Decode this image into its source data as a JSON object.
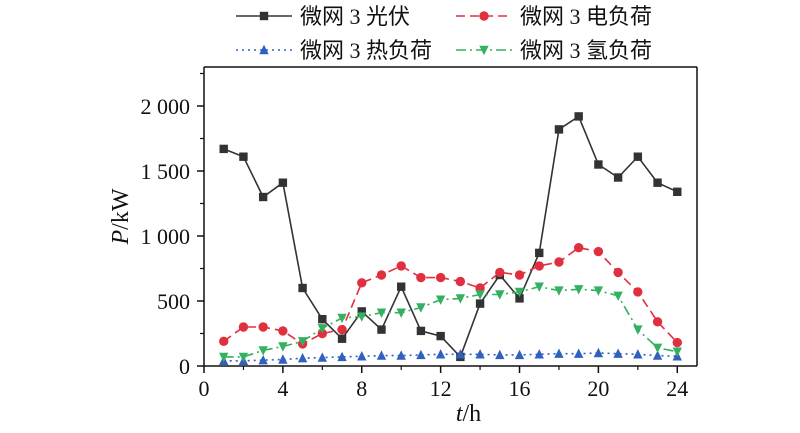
{
  "chart_data": {
    "type": "line",
    "xlabel_italic": "t",
    "xlabel_unit": "/h",
    "ylabel_italic": "P",
    "ylabel_unit": "/kW",
    "xlim": [
      0,
      25
    ],
    "ylim": [
      0,
      2300
    ],
    "x_ticks": [
      0,
      4,
      8,
      12,
      16,
      20,
      24
    ],
    "x_tick_labels": [
      "0",
      "4",
      "8",
      "12",
      "16",
      "20",
      "24"
    ],
    "y_ticks": [
      0,
      500,
      1000,
      1500,
      2000
    ],
    "y_tick_labels": [
      "0",
      "500",
      "1 000",
      "1 500",
      "2 000"
    ],
    "grid": false,
    "legend_position": "top",
    "x": [
      1,
      2,
      3,
      4,
      5,
      6,
      7,
      8,
      9,
      10,
      11,
      12,
      13,
      14,
      15,
      16,
      17,
      18,
      19,
      20,
      21,
      22,
      23,
      24
    ],
    "series": [
      {
        "name": "微网 3 光伏",
        "color": "#333333",
        "line_style": "solid",
        "marker": "square",
        "values": [
          1670,
          1610,
          1300,
          1410,
          600,
          360,
          210,
          420,
          280,
          610,
          270,
          230,
          70,
          480,
          700,
          520,
          870,
          1820,
          1920,
          1550,
          1450,
          1610,
          1410,
          1340
        ]
      },
      {
        "name": "微网 3 电负荷",
        "color": "#e03040",
        "line_style": "dashed",
        "marker": "circle",
        "values": [
          190,
          300,
          300,
          270,
          170,
          250,
          280,
          640,
          700,
          770,
          680,
          680,
          650,
          600,
          720,
          700,
          770,
          800,
          910,
          880,
          720,
          570,
          340,
          180
        ]
      },
      {
        "name": "微网 3 热负荷",
        "color": "#3060c0",
        "line_style": "dotted",
        "marker": "triangle-up",
        "values": [
          40,
          40,
          45,
          50,
          60,
          65,
          70,
          75,
          80,
          80,
          85,
          90,
          90,
          90,
          85,
          85,
          90,
          95,
          95,
          100,
          95,
          90,
          80,
          75
        ]
      },
      {
        "name": "微网 3 氢负荷",
        "color": "#33b060",
        "line_style": "dashdot",
        "marker": "triangle-down",
        "values": [
          70,
          70,
          120,
          150,
          190,
          290,
          370,
          380,
          410,
          410,
          450,
          510,
          520,
          550,
          550,
          570,
          610,
          580,
          590,
          580,
          540,
          280,
          140,
          110
        ]
      }
    ]
  }
}
